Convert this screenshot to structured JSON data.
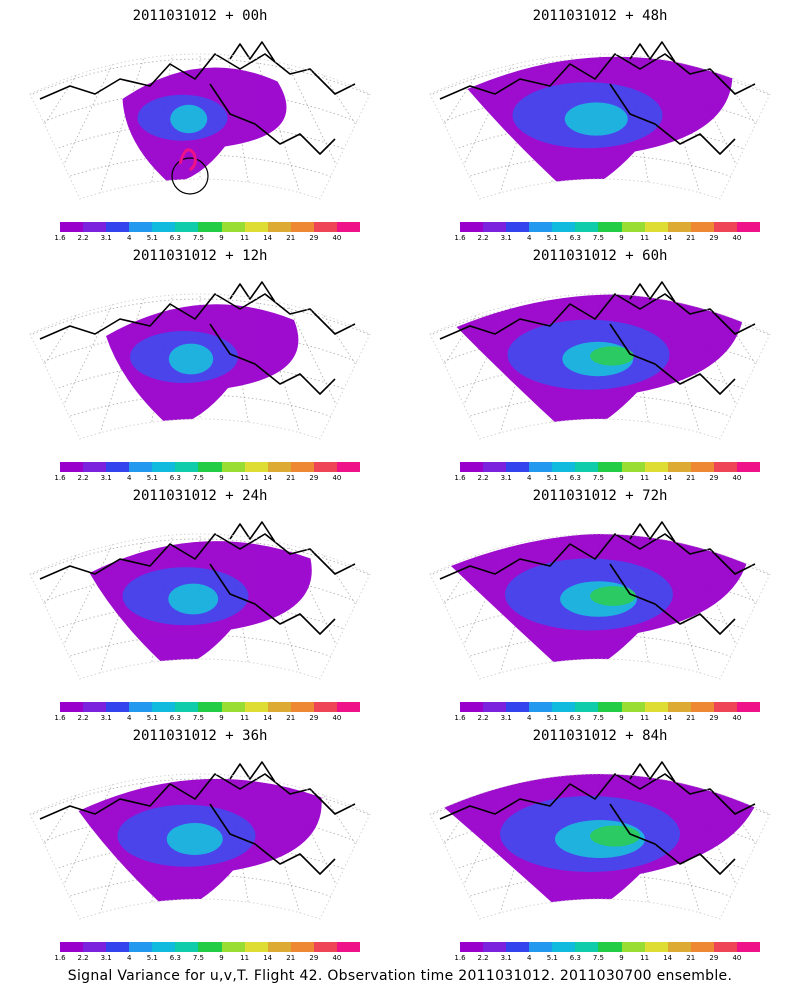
{
  "panels": [
    {
      "title": "2011031012 + 00h",
      "spread": 0.25,
      "intensity": 0.35,
      "show_marker": true
    },
    {
      "title": "2011031012 + 48h",
      "spread": 0.75,
      "intensity": 0.55,
      "show_marker": false
    },
    {
      "title": "2011031012 + 12h",
      "spread": 0.4,
      "intensity": 0.45,
      "show_marker": false
    },
    {
      "title": "2011031012 + 60h",
      "spread": 0.85,
      "intensity": 0.6,
      "show_marker": false
    },
    {
      "title": "2011031012 + 24h",
      "spread": 0.55,
      "intensity": 0.45,
      "show_marker": false
    },
    {
      "title": "2011031012 + 72h",
      "spread": 0.9,
      "intensity": 0.65,
      "show_marker": false
    },
    {
      "title": "2011031012 + 36h",
      "spread": 0.65,
      "intensity": 0.5,
      "show_marker": false
    },
    {
      "title": "2011031012 + 84h",
      "spread": 1.0,
      "intensity": 0.75,
      "show_marker": false
    }
  ],
  "colorbar": {
    "labels": [
      "1.6",
      "2.2",
      "3.1",
      "4",
      "5.1",
      "6.3",
      "7.5",
      "9",
      "11",
      "14",
      "21",
      "29",
      "40"
    ],
    "colors": [
      "#9900cc",
      "#7a22dd",
      "#3344ee",
      "#2299ee",
      "#11bbdd",
      "#11ccaa",
      "#22cc44",
      "#99dd33",
      "#dddd33",
      "#ddaa33",
      "#ee8833",
      "#ee4455",
      "#ee1188"
    ]
  },
  "caption": "Signal Variance for u,v,T. Flight 42. Observation time 2011031012. 2011030700 ensemble."
}
